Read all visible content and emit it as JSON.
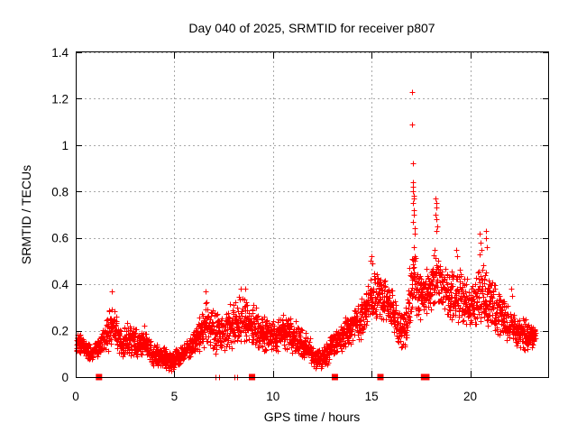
{
  "chart_data": {
    "type": "scatter",
    "title": "Day 040 of 2025, SRMTID for receiver p807",
    "xlabel": "GPS time / hours",
    "ylabel": "SRMTID / TECUs",
    "xlim": [
      0,
      24
    ],
    "ylim": [
      0,
      1.4
    ],
    "grid": true,
    "legend": "none",
    "x_ticks": [
      {
        "v": 0,
        "label": "0"
      },
      {
        "v": 5,
        "label": "5"
      },
      {
        "v": 10,
        "label": "10"
      },
      {
        "v": 15,
        "label": "15"
      },
      {
        "v": 20,
        "label": "20"
      }
    ],
    "y_ticks": [
      {
        "v": 0,
        "label": "0"
      },
      {
        "v": 0.2,
        "label": "0.2"
      },
      {
        "v": 0.4,
        "label": "0.4"
      },
      {
        "v": 0.6,
        "label": "0.6"
      },
      {
        "v": 0.8,
        "label": "0.8"
      },
      {
        "v": 1,
        "label": "1"
      },
      {
        "v": 1.2,
        "label": "1.2"
      },
      {
        "v": 1.4,
        "label": "1.4"
      }
    ],
    "marker": "plus",
    "marker_color": "#ff0000",
    "grid_color": "#a8a8a8",
    "frame_color": "#000000",
    "series_name": "SRMTID",
    "samples_per_hour": 120,
    "time_range": [
      0.03,
      23.32
    ],
    "envelope": [
      [
        0.0,
        0.1,
        0.21
      ],
      [
        0.3,
        0.09,
        0.19
      ],
      [
        0.6,
        0.07,
        0.15
      ],
      [
        0.9,
        0.07,
        0.14
      ],
      [
        1.2,
        0.09,
        0.19
      ],
      [
        1.5,
        0.1,
        0.26
      ],
      [
        1.85,
        0.11,
        0.35
      ],
      [
        2.1,
        0.09,
        0.26
      ],
      [
        2.35,
        0.08,
        0.19
      ],
      [
        2.6,
        0.09,
        0.27
      ],
      [
        2.9,
        0.08,
        0.22
      ],
      [
        3.2,
        0.07,
        0.2
      ],
      [
        3.55,
        0.07,
        0.24
      ],
      [
        3.85,
        0.05,
        0.15
      ],
      [
        4.2,
        0.04,
        0.14
      ],
      [
        4.55,
        0.02,
        0.13
      ],
      [
        4.85,
        0.01,
        0.12
      ],
      [
        5.15,
        0.04,
        0.13
      ],
      [
        5.5,
        0.06,
        0.15
      ],
      [
        5.9,
        0.08,
        0.2
      ],
      [
        6.3,
        0.1,
        0.28
      ],
      [
        6.6,
        0.12,
        0.34
      ],
      [
        7.0,
        0.1,
        0.3
      ],
      [
        7.4,
        0.1,
        0.28
      ],
      [
        7.8,
        0.11,
        0.32
      ],
      [
        8.2,
        0.12,
        0.35
      ],
      [
        8.6,
        0.13,
        0.36
      ],
      [
        9.0,
        0.12,
        0.32
      ],
      [
        9.4,
        0.1,
        0.28
      ],
      [
        9.8,
        0.09,
        0.26
      ],
      [
        10.2,
        0.1,
        0.27
      ],
      [
        10.6,
        0.11,
        0.3
      ],
      [
        11.0,
        0.09,
        0.26
      ],
      [
        11.4,
        0.08,
        0.23
      ],
      [
        11.8,
        0.05,
        0.18
      ],
      [
        12.2,
        0.02,
        0.13
      ],
      [
        12.5,
        0.03,
        0.14
      ],
      [
        12.9,
        0.06,
        0.18
      ],
      [
        13.3,
        0.09,
        0.24
      ],
      [
        13.7,
        0.11,
        0.28
      ],
      [
        14.1,
        0.13,
        0.31
      ],
      [
        14.5,
        0.16,
        0.36
      ],
      [
        14.9,
        0.2,
        0.45
      ],
      [
        15.1,
        0.22,
        0.49
      ],
      [
        15.4,
        0.24,
        0.46
      ],
      [
        15.7,
        0.22,
        0.44
      ],
      [
        16.0,
        0.18,
        0.4
      ],
      [
        16.3,
        0.13,
        0.32
      ],
      [
        16.7,
        0.1,
        0.3
      ],
      [
        17.0,
        0.2,
        0.48
      ],
      [
        17.15,
        0.25,
        0.6
      ],
      [
        17.35,
        0.22,
        0.5
      ],
      [
        17.6,
        0.22,
        0.47
      ],
      [
        17.9,
        0.25,
        0.52
      ],
      [
        18.2,
        0.28,
        0.58
      ],
      [
        18.5,
        0.28,
        0.52
      ],
      [
        18.8,
        0.25,
        0.48
      ],
      [
        19.1,
        0.22,
        0.46
      ],
      [
        19.4,
        0.22,
        0.49
      ],
      [
        19.7,
        0.2,
        0.44
      ],
      [
        20.0,
        0.2,
        0.42
      ],
      [
        20.3,
        0.22,
        0.46
      ],
      [
        20.6,
        0.22,
        0.51
      ],
      [
        20.9,
        0.22,
        0.49
      ],
      [
        21.2,
        0.2,
        0.42
      ],
      [
        21.5,
        0.17,
        0.37
      ],
      [
        21.8,
        0.15,
        0.33
      ],
      [
        22.1,
        0.13,
        0.31
      ],
      [
        22.4,
        0.12,
        0.28
      ],
      [
        22.7,
        0.11,
        0.26
      ],
      [
        23.0,
        0.11,
        0.24
      ],
      [
        23.32,
        0.12,
        0.22
      ]
    ],
    "outliers": [
      [
        1.85,
        0.37
      ],
      [
        6.6,
        0.37
      ],
      [
        8.35,
        0.38
      ],
      [
        8.6,
        0.38
      ],
      [
        14.95,
        0.5
      ],
      [
        15.0,
        0.52
      ],
      [
        15.05,
        0.49
      ],
      [
        16.9,
        0.47
      ],
      [
        16.95,
        0.44
      ],
      [
        17.05,
        1.23
      ],
      [
        17.05,
        1.09
      ],
      [
        17.08,
        0.92
      ],
      [
        17.08,
        0.84
      ],
      [
        17.1,
        0.82
      ],
      [
        17.1,
        0.8
      ],
      [
        17.12,
        0.78
      ],
      [
        17.15,
        0.77
      ],
      [
        17.1,
        0.75
      ],
      [
        17.12,
        0.72
      ],
      [
        17.15,
        0.7
      ],
      [
        17.1,
        0.67
      ],
      [
        17.18,
        0.64
      ],
      [
        17.2,
        0.62
      ],
      [
        18.25,
        0.77
      ],
      [
        18.28,
        0.75
      ],
      [
        18.3,
        0.73
      ],
      [
        18.25,
        0.7
      ],
      [
        18.3,
        0.68
      ],
      [
        18.32,
        0.65
      ],
      [
        18.28,
        0.63
      ],
      [
        19.3,
        0.55
      ],
      [
        19.35,
        0.52
      ],
      [
        20.5,
        0.62
      ],
      [
        20.52,
        0.58
      ],
      [
        20.55,
        0.55
      ],
      [
        20.5,
        0.53
      ],
      [
        20.8,
        0.63
      ],
      [
        20.82,
        0.6
      ],
      [
        20.85,
        0.56
      ],
      [
        22.1,
        0.38
      ],
      [
        22.12,
        0.35
      ]
    ],
    "zero_value_times": [
      7.1,
      7.25,
      8.05,
      8.2
    ],
    "gap_marker_times": [
      1.18,
      8.94,
      13.14,
      15.45,
      17.66,
      17.78
    ]
  }
}
